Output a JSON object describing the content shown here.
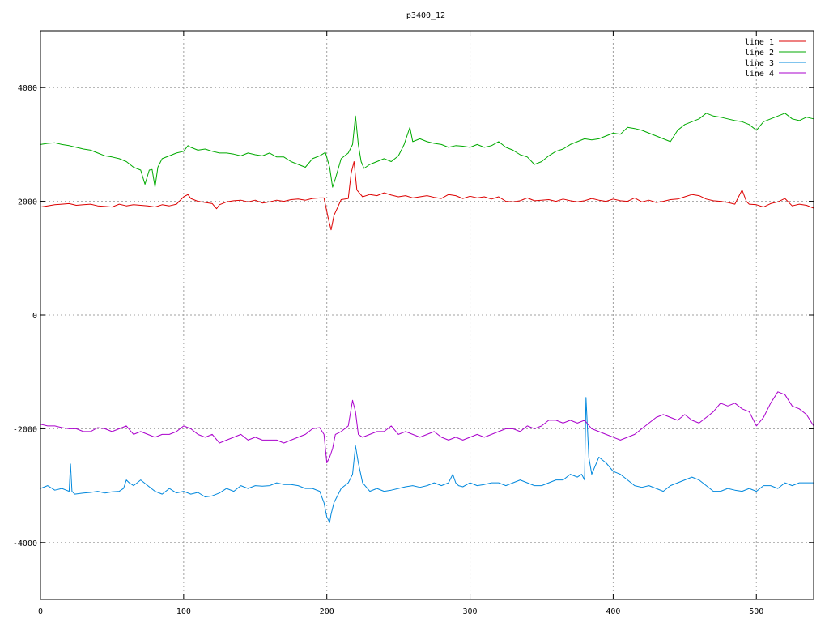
{
  "chart_data": {
    "type": "line",
    "title": "p3400_12",
    "xlabel": "",
    "ylabel": "",
    "xlim": [
      0,
      540
    ],
    "ylim": [
      -5000,
      5000
    ],
    "xticks": [
      0,
      100,
      200,
      300,
      400,
      500
    ],
    "yticks": [
      -4000,
      -2000,
      0,
      2000,
      4000
    ],
    "xtick_labels": [
      "0",
      "100",
      "200",
      "300",
      "400",
      "500"
    ],
    "ytick_labels": [
      "-4000",
      "-2000",
      "0",
      "2000",
      "4000"
    ],
    "grid": true,
    "legend_position": "top-right",
    "series": [
      {
        "name": "line 1",
        "color": "#dd0000",
        "x": [
          0,
          5,
          10,
          15,
          20,
          25,
          30,
          35,
          40,
          45,
          50,
          55,
          60,
          65,
          70,
          75,
          80,
          85,
          90,
          95,
          100,
          103,
          105,
          110,
          115,
          120,
          123,
          125,
          130,
          135,
          140,
          145,
          150,
          155,
          160,
          165,
          170,
          175,
          180,
          185,
          190,
          195,
          198,
          201,
          203,
          205,
          210,
          215,
          217,
          219,
          221,
          225,
          230,
          235,
          240,
          245,
          250,
          255,
          260,
          265,
          270,
          275,
          280,
          285,
          290,
          295,
          300,
          305,
          310,
          315,
          320,
          325,
          330,
          335,
          340,
          345,
          350,
          355,
          360,
          365,
          370,
          375,
          380,
          385,
          390,
          395,
          400,
          405,
          410,
          415,
          420,
          425,
          430,
          435,
          440,
          445,
          450,
          455,
          460,
          465,
          470,
          475,
          480,
          485,
          488,
          490,
          493,
          495,
          500,
          505,
          510,
          515,
          520,
          525,
          530,
          535,
          540
        ],
        "y": [
          1900,
          1920,
          1940,
          1950,
          1960,
          1930,
          1940,
          1950,
          1920,
          1910,
          1900,
          1950,
          1920,
          1940,
          1930,
          1920,
          1900,
          1940,
          1920,
          1950,
          2080,
          2120,
          2050,
          2000,
          1980,
          1960,
          1870,
          1940,
          1990,
          2010,
          2020,
          1990,
          2020,
          1970,
          1990,
          2020,
          2000,
          2030,
          2040,
          2020,
          2050,
          2060,
          2060,
          1700,
          1500,
          1750,
          2030,
          2050,
          2500,
          2700,
          2200,
          2080,
          2120,
          2100,
          2150,
          2110,
          2080,
          2100,
          2060,
          2080,
          2100,
          2070,
          2050,
          2120,
          2100,
          2050,
          2090,
          2060,
          2080,
          2040,
          2080,
          2000,
          1990,
          2010,
          2060,
          2010,
          2020,
          2030,
          2000,
          2040,
          2010,
          1990,
          2010,
          2050,
          2020,
          2000,
          2040,
          2010,
          2000,
          2060,
          1990,
          2020,
          1980,
          2000,
          2030,
          2040,
          2080,
          2120,
          2100,
          2040,
          2010,
          2000,
          1980,
          1950,
          2100,
          2200,
          2000,
          1950,
          1940,
          1900,
          1960,
          1990,
          2050,
          1920,
          1950,
          1930,
          1880
        ]
      },
      {
        "name": "line 2",
        "color": "#00aa00",
        "x": [
          0,
          5,
          10,
          15,
          20,
          25,
          30,
          35,
          40,
          45,
          50,
          55,
          60,
          65,
          70,
          73,
          76,
          78,
          80,
          82,
          85,
          90,
          95,
          100,
          103,
          105,
          110,
          115,
          120,
          125,
          130,
          135,
          140,
          145,
          150,
          155,
          160,
          165,
          170,
          175,
          180,
          185,
          190,
          195,
          199,
          202,
          204,
          206,
          210,
          215,
          218,
          220,
          222,
          224,
          226,
          230,
          235,
          240,
          245,
          250,
          252,
          254,
          256,
          258,
          260,
          265,
          270,
          275,
          280,
          285,
          290,
          295,
          300,
          305,
          310,
          315,
          320,
          325,
          330,
          335,
          340,
          345,
          350,
          355,
          360,
          365,
          370,
          375,
          380,
          385,
          390,
          395,
          400,
          405,
          410,
          415,
          420,
          425,
          430,
          435,
          440,
          445,
          450,
          455,
          460,
          465,
          470,
          475,
          480,
          485,
          490,
          495,
          500,
          505,
          510,
          515,
          520,
          525,
          530,
          535,
          540
        ],
        "y": [
          3000,
          3020,
          3030,
          3000,
          2980,
          2950,
          2920,
          2900,
          2850,
          2800,
          2780,
          2750,
          2700,
          2600,
          2550,
          2300,
          2550,
          2560,
          2250,
          2600,
          2750,
          2800,
          2850,
          2880,
          2980,
          2950,
          2900,
          2920,
          2880,
          2850,
          2850,
          2830,
          2800,
          2850,
          2820,
          2800,
          2850,
          2780,
          2780,
          2700,
          2650,
          2600,
          2750,
          2800,
          2860,
          2600,
          2250,
          2400,
          2750,
          2850,
          3000,
          3500,
          3000,
          2700,
          2580,
          2650,
          2700,
          2750,
          2700,
          2800,
          2900,
          3000,
          3150,
          3300,
          3050,
          3100,
          3050,
          3020,
          3000,
          2950,
          2980,
          2970,
          2950,
          3000,
          2950,
          2980,
          3050,
          2950,
          2900,
          2820,
          2780,
          2650,
          2700,
          2800,
          2880,
          2920,
          3000,
          3050,
          3100,
          3080,
          3100,
          3150,
          3200,
          3180,
          3300,
          3280,
          3250,
          3200,
          3150,
          3100,
          3050,
          3250,
          3350,
          3400,
          3450,
          3550,
          3500,
          3480,
          3450,
          3420,
          3400,
          3350,
          3250,
          3400,
          3450,
          3500,
          3550,
          3450,
          3420,
          3480,
          3450
        ]
      },
      {
        "name": "line 3",
        "color": "#0088dd",
        "x": [
          0,
          5,
          10,
          15,
          18,
          20,
          21,
          22,
          24,
          30,
          35,
          40,
          45,
          50,
          55,
          58,
          60,
          62,
          65,
          70,
          75,
          80,
          85,
          90,
          95,
          100,
          105,
          110,
          115,
          120,
          125,
          130,
          135,
          140,
          145,
          150,
          155,
          160,
          165,
          170,
          175,
          180,
          185,
          190,
          195,
          198,
          200,
          202,
          203,
          205,
          208,
          210,
          215,
          218,
          220,
          222,
          225,
          230,
          235,
          240,
          245,
          250,
          255,
          260,
          265,
          270,
          275,
          280,
          285,
          288,
          290,
          292,
          295,
          300,
          305,
          310,
          315,
          320,
          325,
          330,
          335,
          340,
          345,
          350,
          355,
          360,
          365,
          370,
          375,
          378,
          380,
          381,
          383,
          385,
          390,
          395,
          400,
          405,
          410,
          415,
          420,
          425,
          430,
          435,
          440,
          445,
          450,
          455,
          460,
          465,
          470,
          475,
          480,
          485,
          490,
          495,
          500,
          505,
          510,
          515,
          520,
          525,
          530,
          535,
          540
        ],
        "y": [
          -3050,
          -3000,
          -3080,
          -3050,
          -3080,
          -3100,
          -2620,
          -3100,
          -3150,
          -3130,
          -3120,
          -3100,
          -3130,
          -3110,
          -3100,
          -3050,
          -2900,
          -2950,
          -3000,
          -2900,
          -3000,
          -3100,
          -3150,
          -3050,
          -3130,
          -3100,
          -3150,
          -3120,
          -3200,
          -3180,
          -3130,
          -3050,
          -3100,
          -3000,
          -3050,
          -3000,
          -3010,
          -3000,
          -2950,
          -2980,
          -2980,
          -3000,
          -3050,
          -3050,
          -3100,
          -3300,
          -3550,
          -3650,
          -3500,
          -3300,
          -3150,
          -3050,
          -2950,
          -2800,
          -2300,
          -2600,
          -2950,
          -3100,
          -3050,
          -3100,
          -3080,
          -3050,
          -3020,
          -3000,
          -3030,
          -3000,
          -2950,
          -3000,
          -2950,
          -2800,
          -2950,
          -3000,
          -3020,
          -2950,
          -3000,
          -2980,
          -2950,
          -2950,
          -3000,
          -2950,
          -2900,
          -2950,
          -3000,
          -3000,
          -2950,
          -2900,
          -2900,
          -2800,
          -2850,
          -2800,
          -2900,
          -1450,
          -2500,
          -2800,
          -2500,
          -2600,
          -2750,
          -2800,
          -2900,
          -3000,
          -3030,
          -3000,
          -3050,
          -3100,
          -3000,
          -2950,
          -2900,
          -2850,
          -2900,
          -3000,
          -3100,
          -3100,
          -3050,
          -3080,
          -3100,
          -3050,
          -3100,
          -3000,
          -3000,
          -3050,
          -2950,
          -3000,
          -2950,
          -2950,
          -2950
        ]
      },
      {
        "name": "line 4",
        "color": "#aa00cc",
        "x": [
          0,
          5,
          10,
          15,
          20,
          25,
          30,
          35,
          40,
          45,
          50,
          55,
          60,
          65,
          70,
          75,
          80,
          85,
          90,
          95,
          100,
          105,
          110,
          115,
          120,
          125,
          130,
          135,
          140,
          145,
          150,
          155,
          160,
          165,
          170,
          175,
          180,
          185,
          190,
          195,
          198,
          200,
          202,
          204,
          206,
          210,
          215,
          218,
          220,
          222,
          225,
          230,
          235,
          240,
          245,
          250,
          255,
          260,
          265,
          270,
          275,
          280,
          285,
          290,
          295,
          300,
          305,
          310,
          315,
          320,
          325,
          330,
          335,
          340,
          345,
          350,
          355,
          360,
          365,
          370,
          375,
          380,
          385,
          390,
          395,
          400,
          405,
          410,
          415,
          420,
          425,
          430,
          435,
          440,
          445,
          450,
          455,
          460,
          465,
          470,
          475,
          480,
          485,
          490,
          495,
          500,
          505,
          510,
          515,
          520,
          525,
          530,
          535,
          540
        ],
        "y": [
          -1920,
          -1950,
          -1950,
          -1980,
          -2000,
          -2000,
          -2050,
          -2050,
          -1980,
          -2000,
          -2050,
          -2000,
          -1950,
          -2100,
          -2050,
          -2100,
          -2150,
          -2100,
          -2100,
          -2050,
          -1950,
          -2000,
          -2100,
          -2150,
          -2100,
          -2250,
          -2200,
          -2150,
          -2100,
          -2200,
          -2150,
          -2200,
          -2200,
          -2200,
          -2250,
          -2200,
          -2150,
          -2100,
          -2000,
          -1980,
          -2100,
          -2600,
          -2500,
          -2350,
          -2100,
          -2050,
          -1950,
          -1500,
          -1700,
          -2100,
          -2150,
          -2100,
          -2050,
          -2050,
          -1950,
          -2100,
          -2050,
          -2100,
          -2150,
          -2100,
          -2050,
          -2150,
          -2200,
          -2150,
          -2200,
          -2150,
          -2100,
          -2150,
          -2100,
          -2050,
          -2000,
          -2000,
          -2050,
          -1950,
          -2000,
          -1950,
          -1850,
          -1850,
          -1900,
          -1850,
          -1900,
          -1850,
          -2000,
          -2050,
          -2100,
          -2150,
          -2200,
          -2150,
          -2100,
          -2000,
          -1900,
          -1800,
          -1750,
          -1800,
          -1850,
          -1750,
          -1850,
          -1900,
          -1800,
          -1700,
          -1550,
          -1600,
          -1550,
          -1650,
          -1700,
          -1950,
          -1800,
          -1550,
          -1350,
          -1400,
          -1600,
          -1650,
          -1750,
          -1950
        ]
      }
    ]
  }
}
